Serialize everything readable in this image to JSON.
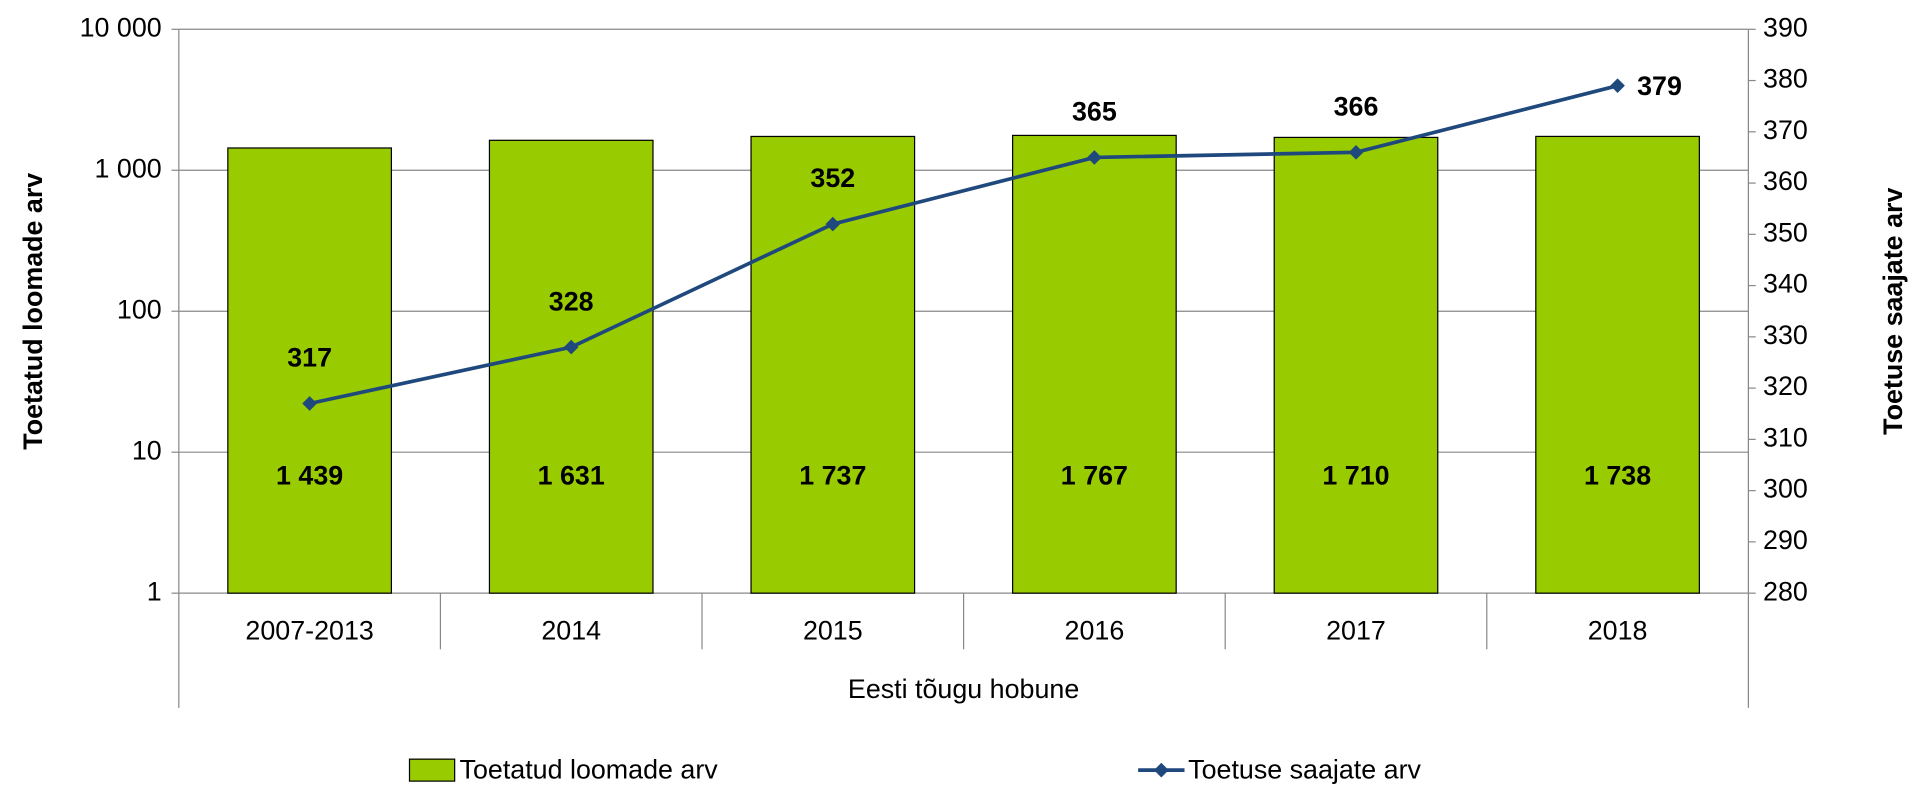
{
  "chart_data": {
    "type": "bar_line",
    "categories": [
      "2007-2013",
      "2014",
      "2015",
      "2016",
      "2017",
      "2018"
    ],
    "xlabel": "Eesti tõugu hobune",
    "ylabel": "Toetatud loomade arv",
    "y2label": "Toetuse saajate arv",
    "ylog": true,
    "ylim": [
      1,
      10000
    ],
    "yticks": [
      1,
      10,
      100,
      {
        "value": 1000,
        "label": "1 000"
      },
      {
        "value": 10000,
        "label": "10 000"
      }
    ],
    "y2lim": [
      280,
      390
    ],
    "y2ticks": [
      280,
      290,
      300,
      310,
      320,
      330,
      340,
      350,
      360,
      370,
      380,
      390
    ],
    "grid": true,
    "legend": "bottom",
    "series": [
      {
        "name": "Toetatud loomade arv",
        "type": "bar",
        "color": "#99cc00",
        "values": [
          1439,
          1631,
          1737,
          1767,
          1710,
          1738
        ],
        "value_labels": [
          "1 439",
          "1 631",
          "1 737",
          "1 767",
          "1 710",
          "1 738"
        ]
      },
      {
        "name": "Toetuse saajate arv",
        "type": "line",
        "axis": "y2",
        "color": "#1f497d",
        "values": [
          317,
          328,
          352,
          365,
          366,
          379
        ]
      }
    ]
  }
}
